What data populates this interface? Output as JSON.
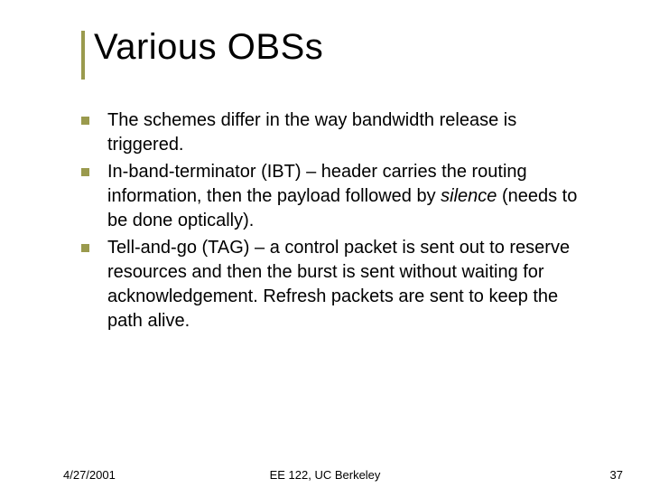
{
  "slide": {
    "title": "Various OBSs",
    "accent_color": "#9a9a4d",
    "bullet_color": "#9a9a4d",
    "bullets": [
      {
        "text": "The schemes differ in the way bandwidth release is triggered."
      },
      {
        "pre": "In-band-terminator (IBT) – header carries the routing information, then the payload followed by ",
        "em": "silence",
        "post": " (needs to be done optically)."
      },
      {
        "text": "Tell-and-go (TAG) – a control packet is sent out to reserve resources and then the burst is sent without waiting for acknowledgement. Refresh packets are sent to keep the path alive."
      }
    ]
  },
  "footer": {
    "date": "4/27/2001",
    "center": "EE 122, UC Berkeley",
    "page": "37"
  },
  "style": {
    "background": "#ffffff",
    "title_fontsize": 40,
    "body_fontsize": 20,
    "footer_fontsize": 13,
    "text_color": "#000000"
  }
}
